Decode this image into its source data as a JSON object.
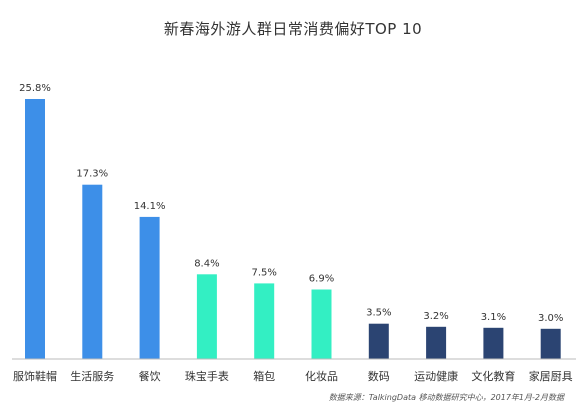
{
  "chart_data": {
    "type": "bar",
    "title": "新春海外游人群日常消费偏好TOP 10",
    "categories": [
      "服饰鞋帽",
      "生活服务",
      "餐饮",
      "珠宝手表",
      "箱包",
      "化妆品",
      "数码",
      "运动健康",
      "文化教育",
      "家居厨具"
    ],
    "values": [
      25.8,
      17.3,
      14.1,
      8.4,
      7.5,
      6.9,
      3.5,
      3.2,
      3.1,
      3.0
    ],
    "value_labels": [
      "25.8%",
      "17.3%",
      "14.1%",
      "8.4%",
      "7.5%",
      "6.9%",
      "3.5%",
      "3.2%",
      "3.1%",
      "3.0%"
    ],
    "bar_colors": [
      "#3d8fe8",
      "#3d8fe8",
      "#3d8fe8",
      "#33efc3",
      "#33efc3",
      "#33efc3",
      "#2b4472",
      "#2b4472",
      "#2b4472",
      "#2b4472"
    ],
    "ylim": [
      0,
      25.8
    ],
    "grid": false,
    "legend": "none",
    "xlabel": "",
    "ylabel": ""
  },
  "source_note": "数据来源：TalkingData 移动数据研究中心，2017年1月-2月数据"
}
